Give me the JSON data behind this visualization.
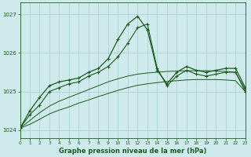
{
  "title": "Graphe pression niveau de la mer (hPa)",
  "background_color": "#ceeaec",
  "grid_color": "#a8cccc",
  "line_color": "#1a5c1a",
  "xlim": [
    0,
    23
  ],
  "ylim": [
    1023.8,
    1027.3
  ],
  "yticks": [
    1024,
    1025,
    1026,
    1027
  ],
  "xticks": [
    0,
    1,
    2,
    3,
    4,
    5,
    6,
    7,
    8,
    9,
    10,
    11,
    12,
    13,
    14,
    15,
    16,
    17,
    18,
    19,
    20,
    21,
    22,
    23
  ],
  "hours": [
    0,
    1,
    2,
    3,
    4,
    5,
    6,
    7,
    8,
    9,
    10,
    11,
    12,
    13,
    14,
    15,
    16,
    17,
    18,
    19,
    20,
    21,
    22,
    23
  ],
  "line_jagged": [
    1024.05,
    1024.5,
    1024.85,
    1025.15,
    1025.25,
    1025.3,
    1025.35,
    1025.5,
    1025.6,
    1025.85,
    1026.35,
    1026.75,
    1026.95,
    1026.6,
    1025.55,
    1025.2,
    1025.5,
    1025.65,
    1025.55,
    1025.5,
    1025.55,
    1025.6,
    1025.6,
    1025.1
  ],
  "line_dotted": [
    1024.05,
    1024.4,
    1024.65,
    1025.0,
    1025.1,
    1025.2,
    1025.25,
    1025.4,
    1025.5,
    1025.65,
    1025.9,
    1026.25,
    1026.65,
    1026.75,
    1025.6,
    1025.15,
    1025.4,
    1025.55,
    1025.45,
    1025.4,
    1025.45,
    1025.5,
    1025.5,
    1025.0
  ],
  "line_smooth_upper": [
    1024.05,
    1024.25,
    1024.45,
    1024.62,
    1024.75,
    1024.85,
    1024.95,
    1025.05,
    1025.15,
    1025.25,
    1025.33,
    1025.4,
    1025.45,
    1025.48,
    1025.5,
    1025.52,
    1025.53,
    1025.54,
    1025.54,
    1025.54,
    1025.53,
    1025.52,
    1025.5,
    1025.05
  ],
  "line_smooth_lower": [
    1024.05,
    1024.15,
    1024.28,
    1024.42,
    1024.52,
    1024.6,
    1024.7,
    1024.78,
    1024.87,
    1024.95,
    1025.03,
    1025.1,
    1025.16,
    1025.2,
    1025.23,
    1025.26,
    1025.28,
    1025.3,
    1025.31,
    1025.31,
    1025.31,
    1025.3,
    1025.28,
    1025.0
  ]
}
